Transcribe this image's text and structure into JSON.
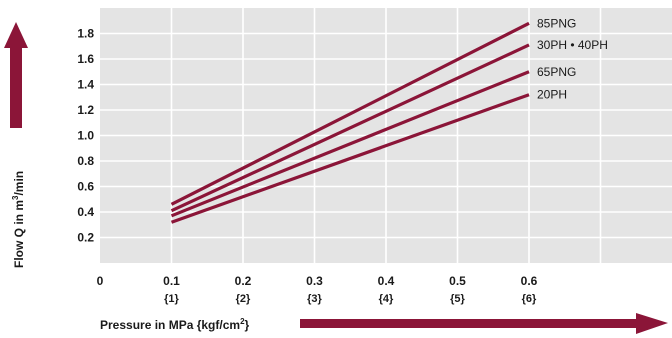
{
  "chart_data": {
    "type": "line",
    "xlabel_prefix": "Pressure in MPa {kgf/cm",
    "xlabel_sup": "2",
    "xlabel_suffix": "}",
    "ylabel_prefix": "Flow Q in m",
    "ylabel_sup": "3",
    "ylabel_suffix": "/min",
    "xlim": [
      0,
      0.8
    ],
    "ylim": [
      0,
      2.0
    ],
    "x_ticks": [
      {
        "value": 0,
        "label": "0",
        "sub": ""
      },
      {
        "value": 0.1,
        "label": "0.1",
        "sub": "{1}"
      },
      {
        "value": 0.2,
        "label": "0.2",
        "sub": "{2}"
      },
      {
        "value": 0.3,
        "label": "0.3",
        "sub": "{3}"
      },
      {
        "value": 0.4,
        "label": "0.4",
        "sub": "{4}"
      },
      {
        "value": 0.5,
        "label": "0.5",
        "sub": "{5}"
      },
      {
        "value": 0.6,
        "label": "0.6",
        "sub": "{6}"
      }
    ],
    "y_ticks": [
      {
        "value": 0.2,
        "label": "0.2"
      },
      {
        "value": 0.4,
        "label": "0.4"
      },
      {
        "value": 0.6,
        "label": "0.6"
      },
      {
        "value": 0.8,
        "label": "0.8"
      },
      {
        "value": 1.0,
        "label": "1.0"
      },
      {
        "value": 1.2,
        "label": "1.2"
      },
      {
        "value": 1.4,
        "label": "1.4"
      },
      {
        "value": 1.6,
        "label": "1.6"
      },
      {
        "value": 1.8,
        "label": "1.8"
      }
    ],
    "grid": true,
    "series": [
      {
        "name": "85PNG",
        "x": [
          0.1,
          0.6
        ],
        "y": [
          0.46,
          1.88
        ]
      },
      {
        "name": "30PH • 40PH",
        "x": [
          0.1,
          0.6
        ],
        "y": [
          0.41,
          1.71
        ]
      },
      {
        "name": "65PNG",
        "x": [
          0.1,
          0.6
        ],
        "y": [
          0.37,
          1.5
        ]
      },
      {
        "name": "20PH",
        "x": [
          0.1,
          0.6
        ],
        "y": [
          0.32,
          1.32
        ]
      }
    ],
    "colors": {
      "line": "#8b1538",
      "plot_bg": "#e4e4e4",
      "grid": "#ffffff",
      "text": "#1a1a1a"
    }
  }
}
